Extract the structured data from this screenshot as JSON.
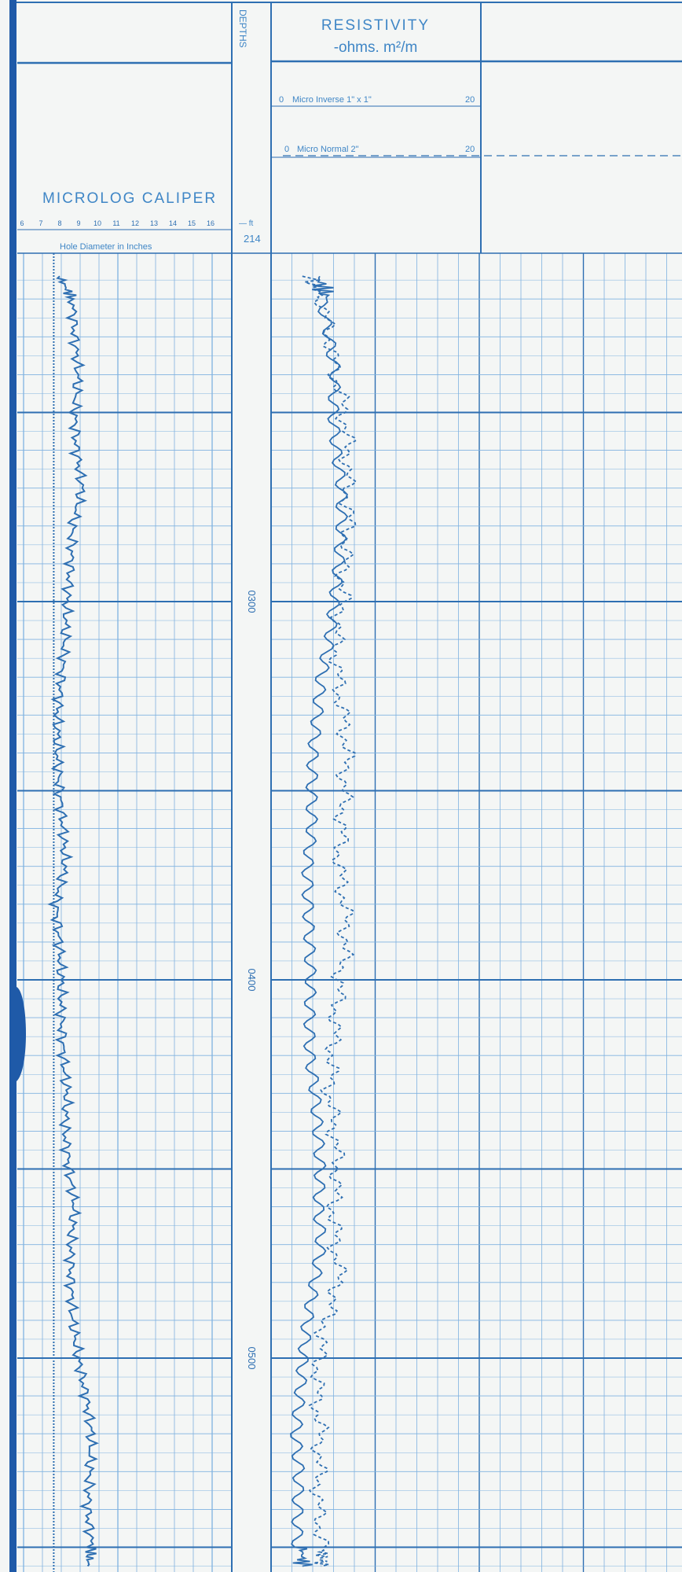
{
  "header": {
    "depths_label": "DEPTHS",
    "resistivity_title": "RESISTIVITY",
    "resistivity_units": "-ohms.  m²/m",
    "caliper_title": "MICROLOG CALIPER",
    "caliper_scale": [
      "6",
      "7",
      "8",
      "9",
      "10",
      "11",
      "12",
      "13",
      "14",
      "15",
      "16"
    ],
    "caliper_axis_label": "Hole Diameter in Inches",
    "ft_label": "— ft",
    "start_depth": "214"
  },
  "curves": {
    "micro_inverse": {
      "left": "0",
      "label": "Micro Inverse 1\" x 1\"",
      "right": "20"
    },
    "micro_normal": {
      "left": "0",
      "label": "Micro Normal 2\"",
      "right": "20"
    }
  },
  "colors": {
    "ink": "#2e6fb2",
    "grid": "#7fb2e0",
    "paper": "#f4f6f5",
    "spine": "#1f5aa8"
  },
  "chart_data": {
    "type": "line",
    "depth_ticks": [
      {
        "depth": 300,
        "label": "0300"
      },
      {
        "depth": 400,
        "label": "0400"
      },
      {
        "depth": 500,
        "label": "0500"
      }
    ],
    "depth_range": [
      214,
      555
    ],
    "caliper_range_in": [
      6,
      16
    ],
    "resistivity_range": [
      0,
      20
    ],
    "series": [
      {
        "name": "MICROLOG CALIPER",
        "track": "caliper",
        "depth": [
          214,
          220,
          230,
          240,
          250,
          260,
          270,
          280,
          290,
          300,
          310,
          320,
          330,
          340,
          350,
          360,
          370,
          380,
          390,
          400,
          410,
          420,
          430,
          440,
          450,
          460,
          470,
          480,
          490,
          500,
          510,
          520,
          530,
          540,
          550,
          555
        ],
        "values": [
          7.9,
          8.6,
          8.7,
          8.9,
          8.7,
          8.8,
          9.1,
          8.6,
          8.5,
          8.3,
          8.2,
          8.0,
          7.8,
          7.8,
          7.9,
          8.1,
          8.2,
          7.7,
          7.9,
          8.0,
          8.0,
          8.1,
          8.3,
          8.2,
          8.4,
          8.7,
          8.5,
          8.5,
          8.6,
          8.9,
          9.3,
          9.6,
          9.5,
          9.4,
          9.6,
          9.4
        ]
      },
      {
        "name": "Micro Inverse 1\" x 1\"",
        "track": "resistivity",
        "depth": [
          214,
          220,
          230,
          240,
          250,
          260,
          270,
          280,
          290,
          300,
          310,
          320,
          330,
          340,
          350,
          360,
          370,
          380,
          390,
          400,
          410,
          420,
          430,
          440,
          450,
          460,
          470,
          480,
          490,
          500,
          510,
          520,
          530,
          540,
          550,
          555
        ],
        "values": [
          4.5,
          5.4,
          6.1,
          6.6,
          6.2,
          6.3,
          6.6,
          6.4,
          6.0,
          5.5,
          5.1,
          4.4,
          4.2,
          4.0,
          4.1,
          4.3,
          4.0,
          4.1,
          4.2,
          4.2,
          3.9,
          3.7,
          4.0,
          4.1,
          4.2,
          4.0,
          4.3,
          3.8,
          3.3,
          3.1,
          3.0,
          2.8,
          3.2,
          3.1,
          3.0,
          3.0
        ]
      },
      {
        "name": "Micro Normal 2\"",
        "track": "resistivity",
        "depth": [
          214,
          220,
          230,
          240,
          250,
          260,
          270,
          280,
          290,
          300,
          310,
          320,
          330,
          340,
          350,
          360,
          370,
          380,
          390,
          400,
          410,
          420,
          430,
          440,
          450,
          460,
          470,
          480,
          490,
          500,
          510,
          520,
          530,
          540,
          550,
          555
        ],
        "values": [
          3.6,
          4.9,
          5.6,
          6.2,
          7.0,
          7.4,
          7.3,
          7.5,
          7.0,
          6.9,
          6.2,
          6.4,
          6.9,
          7.3,
          7.0,
          6.8,
          6.5,
          7.1,
          7.2,
          6.6,
          6.2,
          5.9,
          5.6,
          6.1,
          6.4,
          6.0,
          6.2,
          6.6,
          5.2,
          4.6,
          4.4,
          4.7,
          4.6,
          4.5,
          5.0,
          4.8
        ]
      }
    ]
  }
}
